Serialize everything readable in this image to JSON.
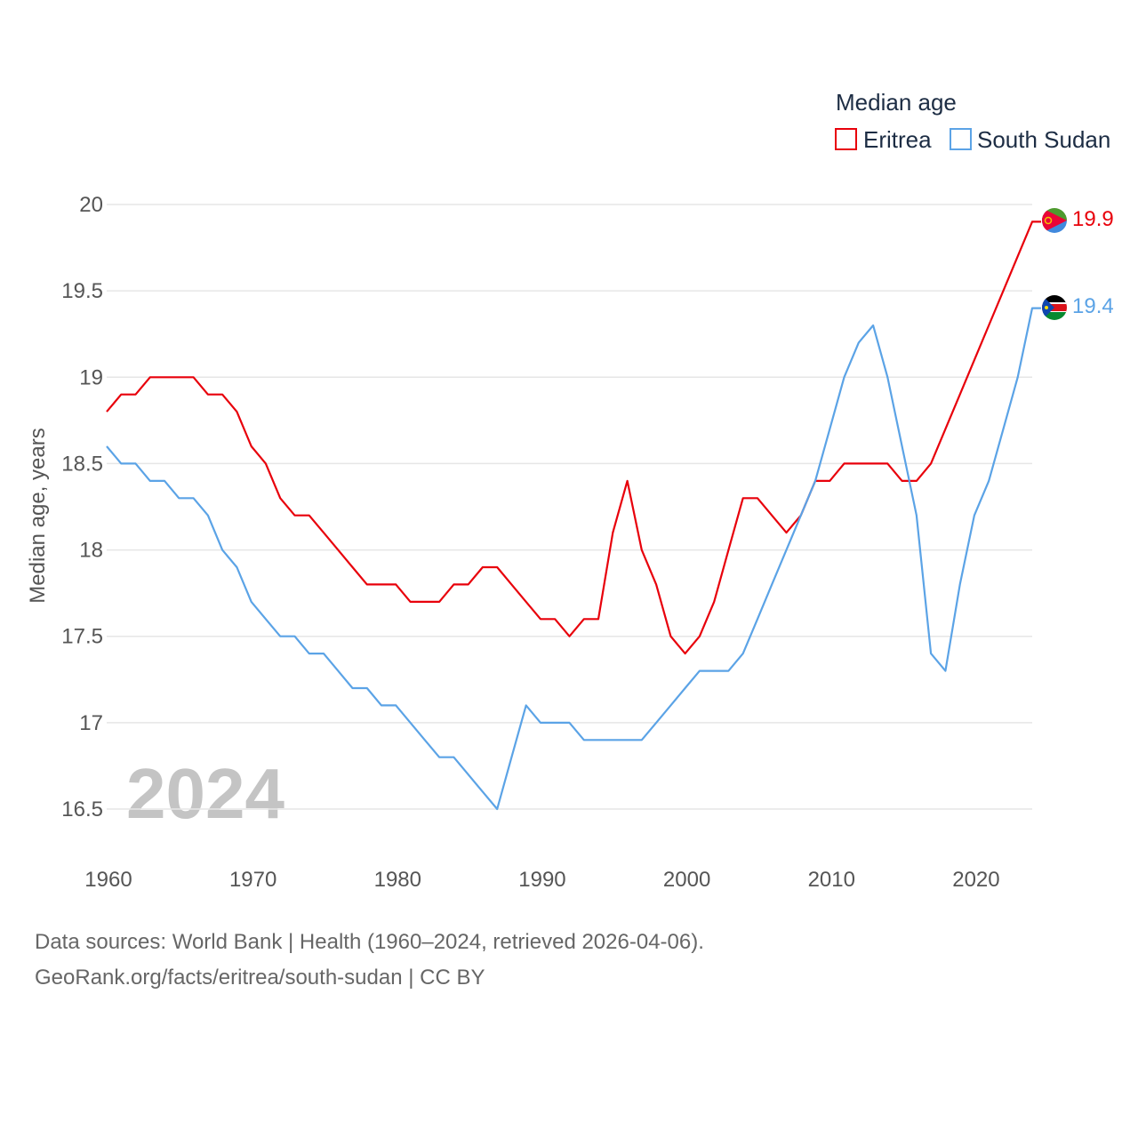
{
  "chart_data": {
    "type": "line",
    "title": "",
    "legend_title": "Median age",
    "legend_position": "top-right",
    "ylabel": "Median age, years",
    "xlabel": "",
    "ylim": [
      16.2,
      20.2
    ],
    "xlim": [
      1960,
      2024
    ],
    "y_ticks": [
      16.5,
      17,
      17.5,
      18,
      18.5,
      19,
      19.5,
      20
    ],
    "y_tick_labels": [
      "16.5",
      "17",
      "17.5",
      "18",
      "18.5",
      "19",
      "19.5",
      "20"
    ],
    "x_ticks": [
      1960,
      1970,
      1980,
      1990,
      2000,
      2010,
      2020
    ],
    "x_tick_labels": [
      "1960",
      "1970",
      "1980",
      "1990",
      "2000",
      "2010",
      "2020"
    ],
    "grid": true,
    "year_label": "2024",
    "x": [
      1960,
      1961,
      1962,
      1963,
      1964,
      1965,
      1966,
      1967,
      1968,
      1969,
      1970,
      1971,
      1972,
      1973,
      1974,
      1975,
      1976,
      1977,
      1978,
      1979,
      1980,
      1981,
      1982,
      1983,
      1984,
      1985,
      1986,
      1987,
      1988,
      1989,
      1990,
      1991,
      1992,
      1993,
      1994,
      1995,
      1996,
      1997,
      1998,
      1999,
      2000,
      2001,
      2002,
      2003,
      2004,
      2005,
      2006,
      2007,
      2008,
      2009,
      2010,
      2011,
      2012,
      2013,
      2014,
      2015,
      2016,
      2017,
      2018,
      2019,
      2020,
      2021,
      2022,
      2023,
      2024
    ],
    "series": [
      {
        "name": "Eritrea",
        "color": "#e8000b",
        "end_label": "19.9",
        "flag": "eritrea-flag",
        "values": [
          18.8,
          18.9,
          18.9,
          19.0,
          19.0,
          19.0,
          19.0,
          18.9,
          18.9,
          18.8,
          18.6,
          18.5,
          18.3,
          18.2,
          18.2,
          18.1,
          18.0,
          17.9,
          17.8,
          17.8,
          17.8,
          17.7,
          17.7,
          17.7,
          17.8,
          17.8,
          17.9,
          17.9,
          17.8,
          17.7,
          17.6,
          17.6,
          17.5,
          17.6,
          17.6,
          18.1,
          18.4,
          18.0,
          17.8,
          17.5,
          17.4,
          17.5,
          17.7,
          18.0,
          18.3,
          18.3,
          18.2,
          18.1,
          18.2,
          18.4,
          18.4,
          18.5,
          18.5,
          18.5,
          18.5,
          18.4,
          18.4,
          18.5,
          18.7,
          18.9,
          19.1,
          19.3,
          19.5,
          19.7,
          19.9
        ]
      },
      {
        "name": "South Sudan",
        "color": "#5ba3e6",
        "end_label": "19.4",
        "flag": "south-sudan-flag",
        "values": [
          18.6,
          18.5,
          18.5,
          18.4,
          18.4,
          18.3,
          18.3,
          18.2,
          18.0,
          17.9,
          17.7,
          17.6,
          17.5,
          17.5,
          17.4,
          17.4,
          17.3,
          17.2,
          17.2,
          17.1,
          17.1,
          17.0,
          16.9,
          16.8,
          16.8,
          16.7,
          16.6,
          16.5,
          16.8,
          17.1,
          17.0,
          17.0,
          17.0,
          16.9,
          16.9,
          16.9,
          16.9,
          16.9,
          17.0,
          17.1,
          17.2,
          17.3,
          17.3,
          17.3,
          17.4,
          17.6,
          17.8,
          18.0,
          18.2,
          18.4,
          18.7,
          19.0,
          19.2,
          19.3,
          19.0,
          18.6,
          18.2,
          17.4,
          17.3,
          17.8,
          18.2,
          18.4,
          18.7,
          19.0,
          19.4
        ]
      }
    ]
  },
  "footer": {
    "sources": "Data sources: World Bank | Health (1960–2024, retrieved 2026-04-06).",
    "attribution": "GeoRank.org/facts/eritrea/south-sudan | CC BY"
  }
}
